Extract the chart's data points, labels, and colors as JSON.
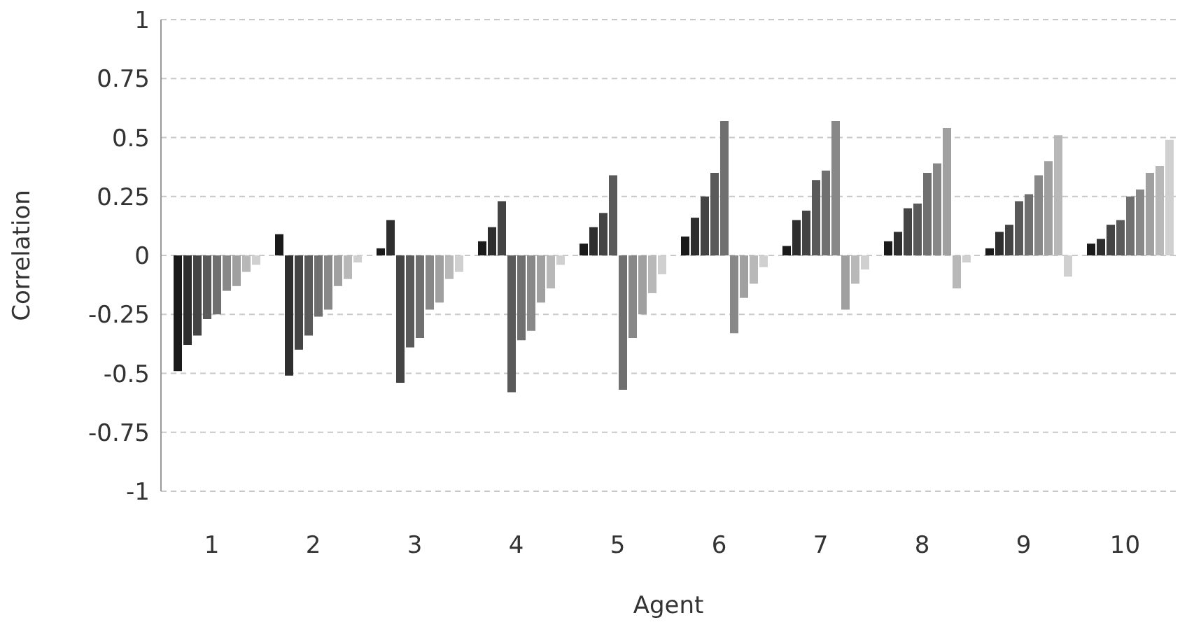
{
  "chart_data": {
    "type": "bar",
    "xlabel": "Agent",
    "ylabel": "Correlation",
    "categories": [
      "1",
      "2",
      "3",
      "4",
      "5",
      "6",
      "7",
      "8",
      "9",
      "10"
    ],
    "series": [
      {
        "color": "#999999",
        "values": [
          0,
          0,
          0,
          0,
          0,
          0,
          0,
          0,
          0,
          0
        ]
      },
      {
        "color": "#1a1a1a",
        "values": [
          -0.49,
          0.09,
          0.03,
          0.06,
          0.05,
          0.08,
          0.04,
          0.06,
          0.03,
          0.05
        ]
      },
      {
        "color": "#2e2e2e",
        "values": [
          -0.38,
          -0.51,
          0.15,
          0.12,
          0.12,
          0.16,
          0.15,
          0.1,
          0.1,
          0.07
        ]
      },
      {
        "color": "#444444",
        "values": [
          -0.34,
          -0.4,
          -0.54,
          0.23,
          0.18,
          0.25,
          0.19,
          0.2,
          0.13,
          0.13
        ]
      },
      {
        "color": "#5a5a5a",
        "values": [
          -0.27,
          -0.34,
          -0.39,
          -0.58,
          0.34,
          0.35,
          0.32,
          0.22,
          0.23,
          0.15
        ]
      },
      {
        "color": "#707070",
        "values": [
          -0.25,
          -0.26,
          -0.35,
          -0.36,
          -0.57,
          0.57,
          0.36,
          0.35,
          0.26,
          0.25
        ]
      },
      {
        "color": "#888888",
        "values": [
          -0.15,
          -0.23,
          -0.23,
          -0.32,
          -0.35,
          -0.33,
          0.57,
          0.39,
          0.34,
          0.28
        ]
      },
      {
        "color": "#a0a0a0",
        "values": [
          -0.13,
          -0.13,
          -0.2,
          -0.2,
          -0.25,
          -0.18,
          -0.23,
          0.54,
          0.4,
          0.35
        ]
      },
      {
        "color": "#b8b8b8",
        "values": [
          -0.07,
          -0.1,
          -0.1,
          -0.14,
          -0.16,
          -0.12,
          -0.12,
          -0.14,
          0.51,
          0.38
        ]
      },
      {
        "color": "#d0d0d0",
        "values": [
          -0.04,
          -0.03,
          -0.07,
          -0.04,
          -0.08,
          -0.05,
          -0.06,
          -0.03,
          -0.09,
          0.49
        ]
      }
    ],
    "ylim": [
      -1,
      1
    ],
    "yticks": [
      {
        "value": -1,
        "label": "-1"
      },
      {
        "value": -0.75,
        "label": "-0.75"
      },
      {
        "value": -0.5,
        "label": "-0.5"
      },
      {
        "value": -0.25,
        "label": "-0.25"
      },
      {
        "value": 0,
        "label": "0"
      },
      {
        "value": 0.25,
        "label": "0.25"
      },
      {
        "value": 0.5,
        "label": "0.5"
      },
      {
        "value": 0.75,
        "label": "0.75"
      },
      {
        "value": 1,
        "label": "1"
      }
    ],
    "grid": "y",
    "legend": false
  }
}
